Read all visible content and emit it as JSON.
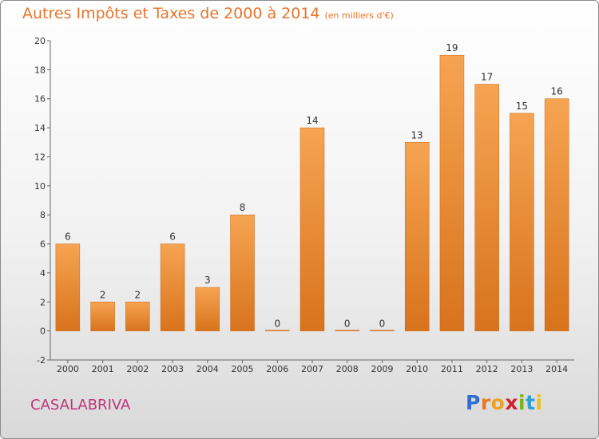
{
  "title": "Autres Impôts et Taxes de 2000 à 2014",
  "unit": "(en milliers d'€)",
  "commune": "CASALABRIVA",
  "logo": {
    "letters": [
      "P",
      "r",
      "o",
      "x",
      "i",
      "t",
      "i"
    ],
    "colors": [
      "#2f6fcf",
      "#e87722",
      "#f0a020",
      "#d4202a",
      "#7ab317",
      "#2f9fd4",
      "#e8c020"
    ]
  },
  "colors": {
    "title": "#e8742a",
    "bar_top": "#f6a452",
    "bar_bottom": "#d8731c",
    "commune": "#c0347a"
  },
  "chart_data": {
    "type": "bar",
    "title": "Autres Impôts et Taxes de 2000 à 2014",
    "xlabel": "",
    "ylabel": "",
    "categories": [
      "2000",
      "2001",
      "2002",
      "2003",
      "2004",
      "2005",
      "2006",
      "2007",
      "2008",
      "2009",
      "2010",
      "2011",
      "2012",
      "2013",
      "2014"
    ],
    "values": [
      6,
      2,
      2,
      6,
      3,
      8,
      0,
      14,
      0,
      0,
      13,
      19,
      17,
      15,
      16
    ],
    "ylim": [
      -2,
      20
    ],
    "yticks": [
      -2,
      0,
      2,
      4,
      6,
      8,
      10,
      12,
      14,
      16,
      18,
      20
    ],
    "grid": false,
    "data_labels": true
  }
}
